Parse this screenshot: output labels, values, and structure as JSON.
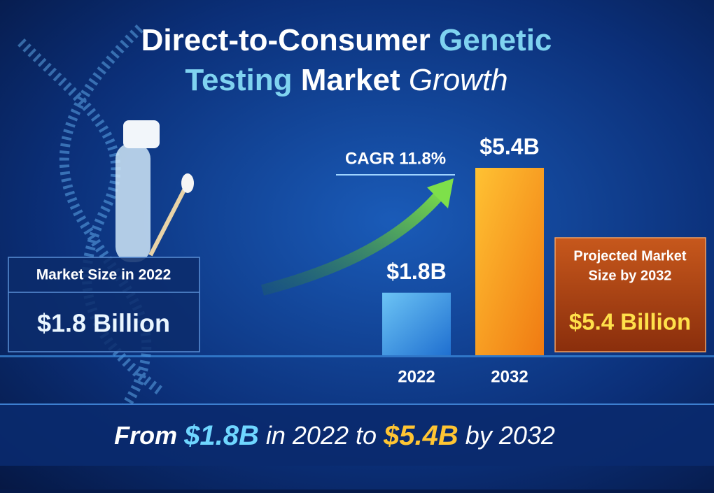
{
  "chart_data": {
    "type": "bar",
    "title_parts": [
      "Direct-to-Consumer",
      "Genetic",
      "Testing",
      "Market",
      "Growth"
    ],
    "categories": [
      "2022",
      "2032"
    ],
    "values": [
      1.8,
      5.4
    ],
    "value_labels": [
      "$1.8B",
      "$5.4B"
    ],
    "colors": [
      "#3a9be6",
      "#f5a11f"
    ],
    "annotation": "CAGR 11.8%",
    "left_panel": {
      "heading": "Market Size in 2022",
      "value": "$1.8 Billion"
    },
    "right_panel": {
      "heading_lines": [
        "Projected Market",
        "Size by 2032"
      ],
      "value": "$5.4 Billion"
    },
    "footer_parts": [
      "From",
      "$1.8B",
      "in 2022 to",
      "$5.4B",
      "by 2032"
    ]
  }
}
